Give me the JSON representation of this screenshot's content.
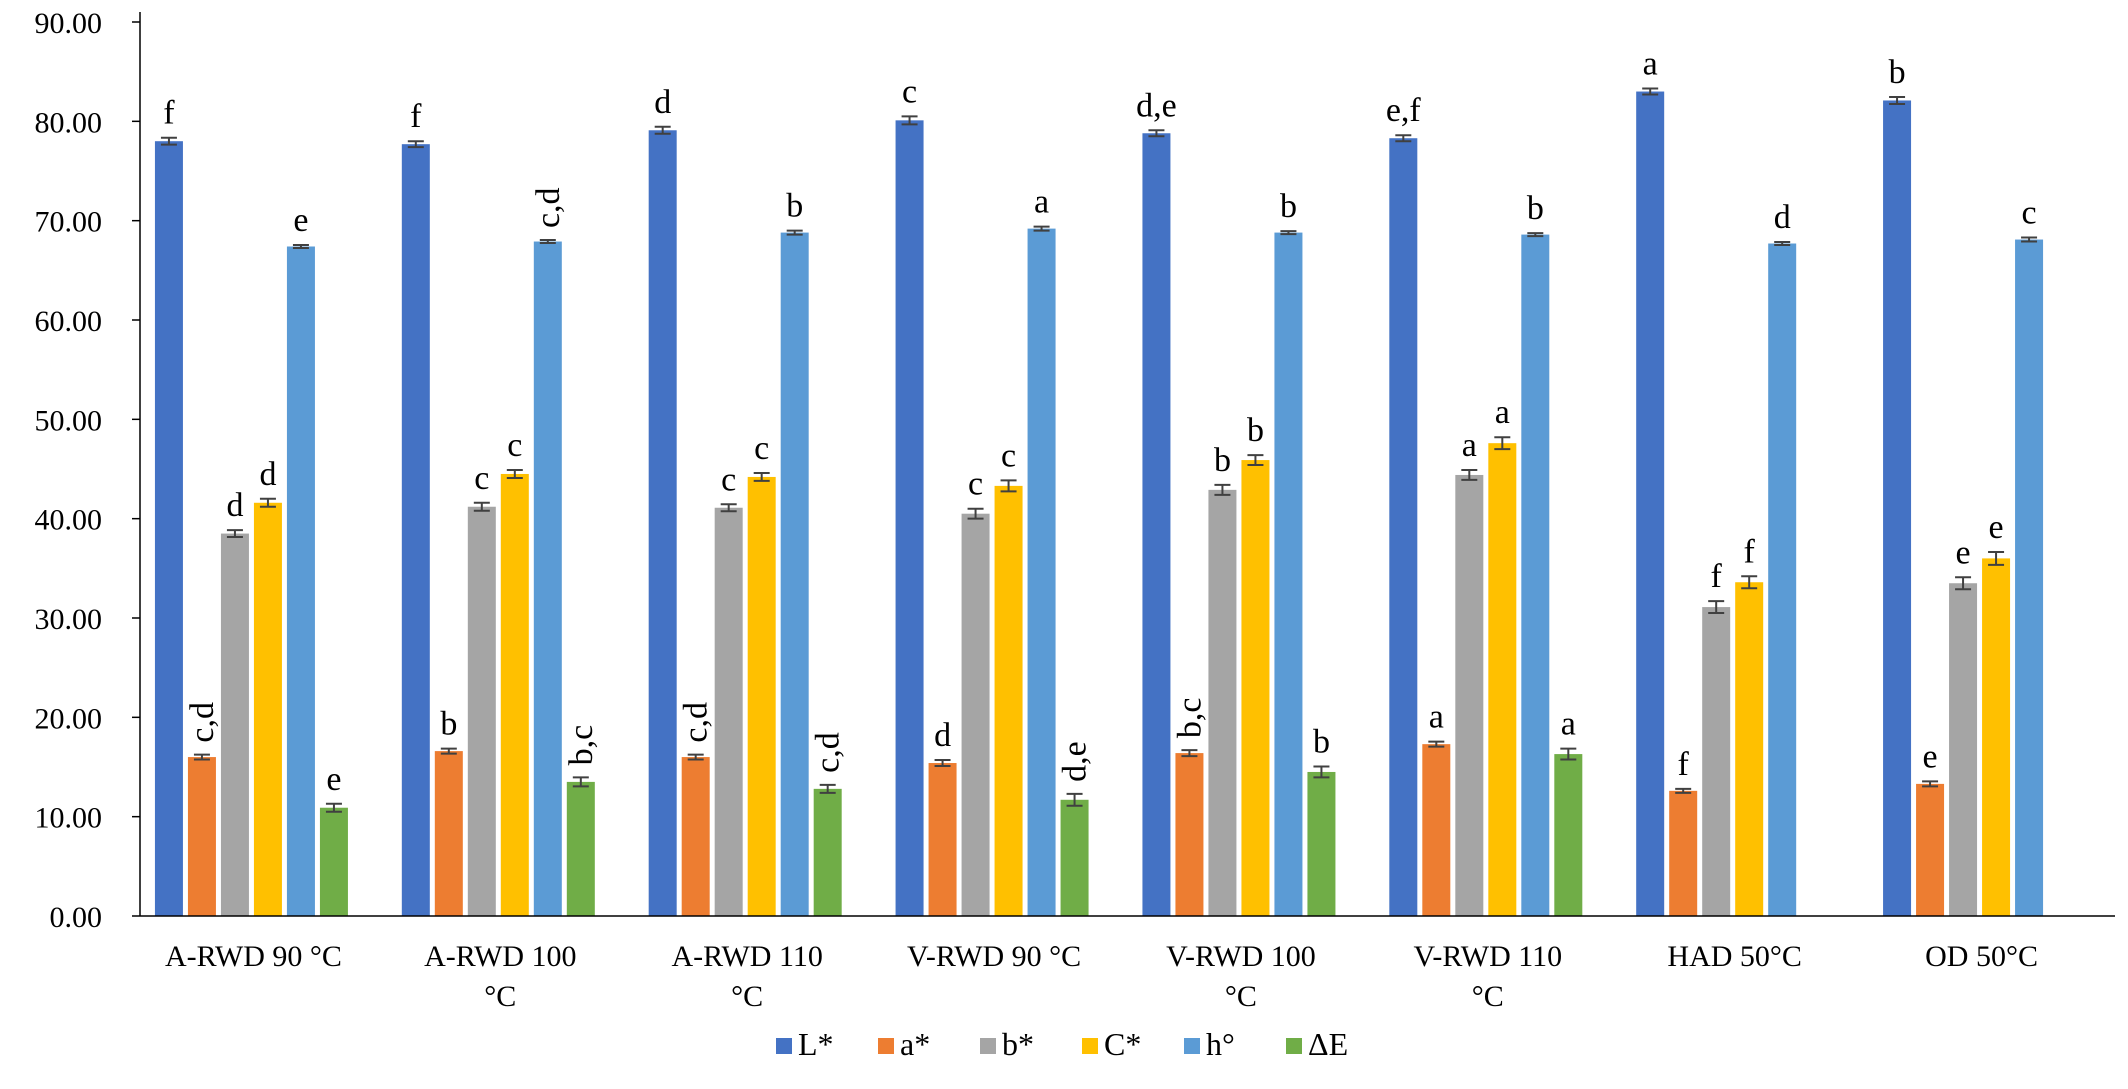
{
  "chart_data": {
    "type": "bar",
    "categories": [
      [
        "A-RWD 90 °C"
      ],
      [
        "A-RWD  100",
        "°C"
      ],
      [
        "A-RWD  110",
        "°C"
      ],
      [
        "V-RWD   90 °C"
      ],
      [
        "V-RWD  100",
        "°C"
      ],
      [
        "V-RWD  110",
        "°C"
      ],
      [
        "HAD 50°C"
      ],
      [
        "OD 50°C"
      ]
    ],
    "ylim": [
      0,
      90
    ],
    "yticks": [
      "0.00",
      "10.00",
      "20.00",
      "30.00",
      "40.00",
      "50.00",
      "60.00",
      "70.00",
      "80.00",
      "90.00"
    ],
    "ytick_values": [
      0,
      10,
      20,
      30,
      40,
      50,
      60,
      70,
      80,
      90
    ],
    "legend_position": "bottom",
    "grid": false,
    "series": [
      {
        "name": "L*",
        "color": "#4472C4",
        "values": [
          78.0,
          77.7,
          79.1,
          80.1,
          78.8,
          78.3,
          83.0,
          82.1
        ],
        "errors": [
          0.35,
          0.3,
          0.35,
          0.4,
          0.3,
          0.3,
          0.3,
          0.35
        ],
        "sig": [
          "f",
          "f",
          "d",
          "c",
          "d,e",
          "e,f",
          "a",
          "b"
        ]
      },
      {
        "name": "a*",
        "color": "#ED7D31",
        "values": [
          16.0,
          16.6,
          16.0,
          15.4,
          16.4,
          17.3,
          12.6,
          13.3
        ],
        "errors": [
          0.25,
          0.25,
          0.25,
          0.3,
          0.3,
          0.25,
          0.2,
          0.25
        ],
        "sig": [
          "c,d",
          "b",
          "c,d",
          "d",
          "b,c",
          "a",
          "f",
          "e"
        ]
      },
      {
        "name": "b*",
        "color": "#A5A5A5",
        "values": [
          38.5,
          41.2,
          41.1,
          40.5,
          42.9,
          44.4,
          31.1,
          33.5
        ],
        "errors": [
          0.35,
          0.4,
          0.35,
          0.5,
          0.5,
          0.5,
          0.6,
          0.6
        ],
        "sig": [
          "d",
          "c",
          "c",
          "c",
          "b",
          "a",
          "f",
          "e"
        ]
      },
      {
        "name": "C*",
        "color": "#FFC000",
        "values": [
          41.6,
          44.5,
          44.2,
          43.3,
          45.9,
          47.6,
          33.6,
          36.0
        ],
        "errors": [
          0.4,
          0.4,
          0.4,
          0.55,
          0.5,
          0.6,
          0.6,
          0.65
        ],
        "sig": [
          "d",
          "c",
          "c",
          "c",
          "b",
          "a",
          "f",
          "e"
        ]
      },
      {
        "name": "h°",
        "color": "#5B9BD5",
        "values": [
          67.4,
          67.9,
          68.8,
          69.2,
          68.8,
          68.6,
          67.7,
          68.1
        ],
        "errors": [
          0.15,
          0.15,
          0.2,
          0.2,
          0.15,
          0.15,
          0.15,
          0.2
        ],
        "sig": [
          "e",
          "c,d",
          "b",
          "a",
          "b",
          "b",
          "d",
          "c"
        ]
      },
      {
        "name": "ΔE",
        "color": "#70AD47",
        "values": [
          10.9,
          13.5,
          12.8,
          11.7,
          14.5,
          16.3,
          null,
          null
        ],
        "errors": [
          0.4,
          0.45,
          0.4,
          0.6,
          0.55,
          0.55,
          null,
          null
        ],
        "sig": [
          "e",
          "b,c",
          "c,d",
          "d,e",
          "b",
          "a",
          "",
          ""
        ]
      }
    ]
  }
}
